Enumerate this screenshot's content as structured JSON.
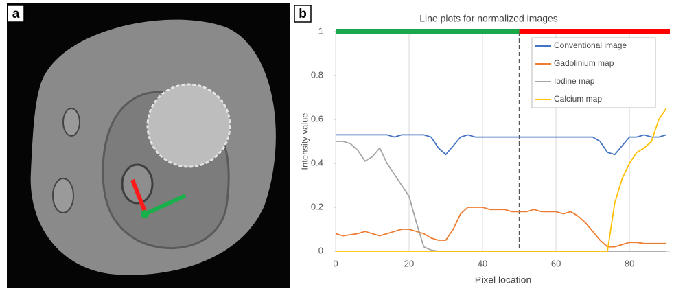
{
  "panel_labels": [
    "a",
    "b"
  ],
  "chart_data": {
    "type": "line",
    "title": "Line plots for normalized images",
    "x_label": "Pixel location",
    "y_label": "Intensity value",
    "x": [
      0,
      2,
      4,
      6,
      8,
      10,
      12,
      14,
      16,
      18,
      20,
      22,
      24,
      26,
      28,
      30,
      32,
      34,
      36,
      38,
      40,
      42,
      44,
      46,
      48,
      50,
      52,
      54,
      56,
      58,
      60,
      62,
      64,
      66,
      68,
      70,
      72,
      74,
      76,
      78,
      80,
      82,
      84,
      86,
      88,
      90
    ],
    "series": [
      {
        "name": "Conventional image",
        "color": "#4472c4",
        "values": [
          0.53,
          0.53,
          0.53,
          0.53,
          0.53,
          0.53,
          0.53,
          0.53,
          0.52,
          0.53,
          0.53,
          0.53,
          0.53,
          0.52,
          0.47,
          0.44,
          0.48,
          0.52,
          0.53,
          0.52,
          0.52,
          0.52,
          0.52,
          0.52,
          0.52,
          0.52,
          0.52,
          0.52,
          0.52,
          0.52,
          0.52,
          0.52,
          0.52,
          0.52,
          0.52,
          0.52,
          0.5,
          0.45,
          0.44,
          0.48,
          0.52,
          0.52,
          0.53,
          0.52,
          0.52,
          0.53
        ]
      },
      {
        "name": "Gadolinium map",
        "color": "#ed7d31",
        "values": [
          0.08,
          0.07,
          0.075,
          0.08,
          0.09,
          0.08,
          0.07,
          0.08,
          0.09,
          0.1,
          0.1,
          0.09,
          0.08,
          0.06,
          0.05,
          0.05,
          0.1,
          0.17,
          0.2,
          0.2,
          0.2,
          0.19,
          0.19,
          0.19,
          0.18,
          0.18,
          0.18,
          0.19,
          0.18,
          0.18,
          0.18,
          0.17,
          0.18,
          0.16,
          0.13,
          0.09,
          0.05,
          0.02,
          0.02,
          0.03,
          0.04,
          0.04,
          0.035,
          0.035,
          0.035,
          0.035
        ]
      },
      {
        "name": "Iodine map",
        "color": "#a5a5a5",
        "values": [
          0.5,
          0.5,
          0.49,
          0.46,
          0.41,
          0.43,
          0.47,
          0.4,
          0.35,
          0.3,
          0.25,
          0.13,
          0.02,
          0.005,
          0,
          0,
          0,
          0,
          0,
          0,
          0,
          0,
          0,
          0,
          0,
          0,
          0,
          0,
          0,
          0,
          0,
          0,
          0,
          0,
          0,
          0,
          0,
          0,
          0,
          0,
          0,
          0,
          0,
          0,
          0,
          0
        ]
      },
      {
        "name": "Calcium map",
        "color": "#ffc000",
        "values": [
          0,
          0,
          0,
          0,
          0,
          0,
          0,
          0,
          0,
          0,
          0,
          0,
          0,
          0,
          0,
          0,
          0,
          0,
          0,
          0,
          0,
          0,
          0,
          0,
          0,
          0,
          0,
          0,
          0,
          0,
          0,
          0,
          0,
          0,
          0,
          0,
          0,
          0,
          0.22,
          0.33,
          0.4,
          0.45,
          0.47,
          0.5,
          0.6,
          0.65
        ]
      }
    ],
    "xlim": [
      0,
      91
    ],
    "xticks": [
      0,
      20,
      40,
      60,
      80
    ],
    "ylim": [
      0,
      1
    ],
    "yticks": [
      0,
      0.2,
      0.4,
      0.6,
      0.8,
      1
    ],
    "grid": "x",
    "legend": "upper-right",
    "regions": [
      {
        "start": 0,
        "end": 50,
        "color": "#19a84b"
      },
      {
        "start": 50,
        "end": 91,
        "color": "#ff0000"
      }
    ],
    "vline": 50
  }
}
